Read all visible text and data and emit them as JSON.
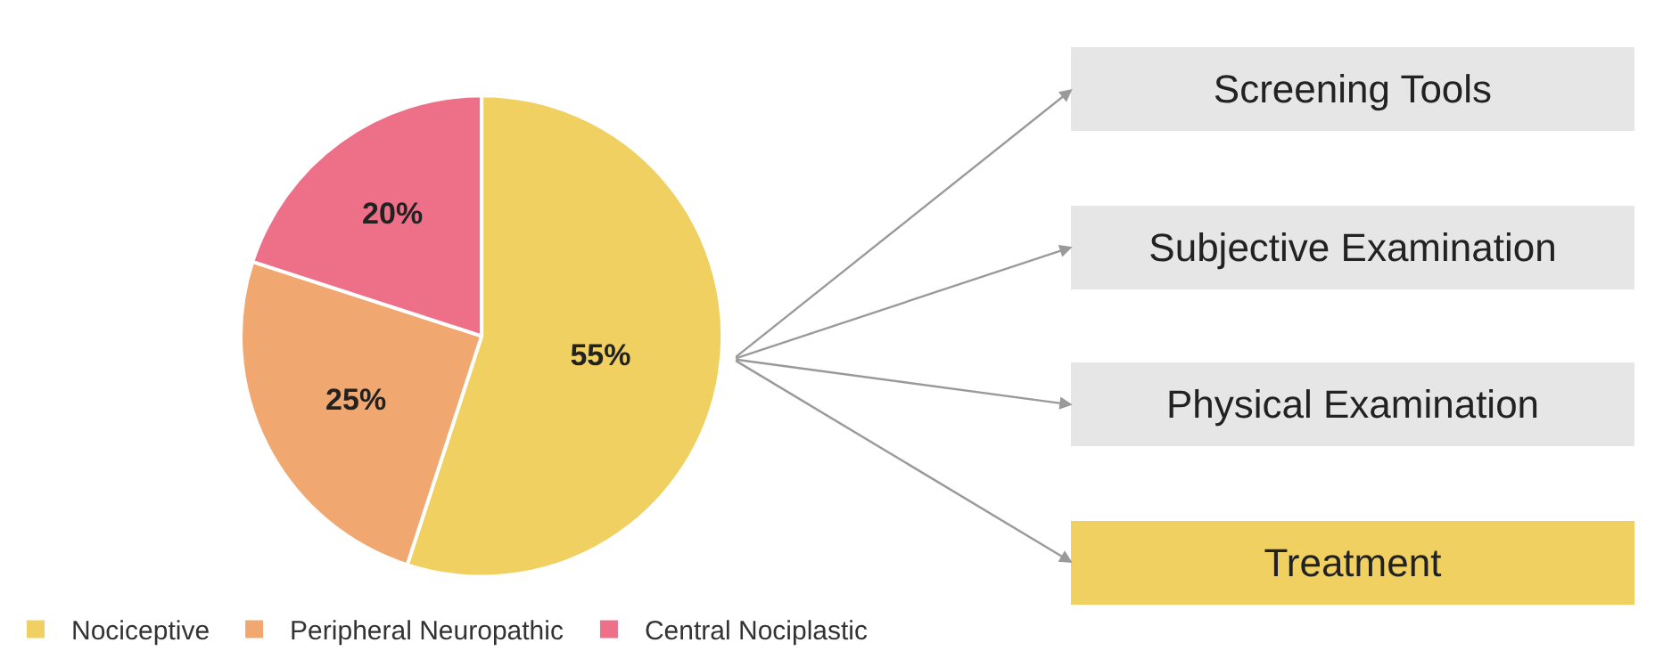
{
  "chart_data": {
    "type": "pie",
    "categories": [
      "Nociceptive",
      "Peripheral Neuropathic",
      "Central Nociplastic"
    ],
    "values": [
      55,
      25,
      20
    ],
    "value_labels": [
      "55%",
      "25%",
      "20%"
    ],
    "colors": [
      "#f0d060",
      "#f0a870",
      "#ee6f88"
    ],
    "legend": "bottom left",
    "annotations": [
      "Screening Tools",
      "Subjective Examination",
      "Physical Examination",
      "Treatment"
    ]
  }
}
